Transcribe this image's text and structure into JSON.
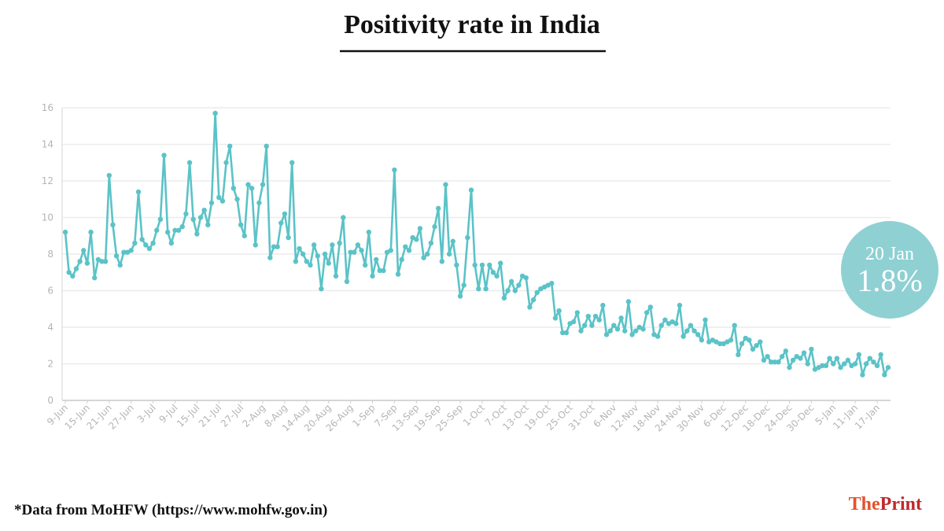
{
  "chart_data": {
    "type": "line",
    "title": "Positivity rate in India",
    "categories": [
      "9-Jun",
      null,
      null,
      null,
      null,
      null,
      "15-Jun",
      null,
      null,
      null,
      null,
      null,
      "21-Jun",
      null,
      null,
      null,
      null,
      null,
      "27-Jun",
      null,
      null,
      null,
      null,
      null,
      "3-Jul",
      null,
      null,
      null,
      null,
      null,
      "9-Jul",
      null,
      null,
      null,
      null,
      null,
      "15-Jul",
      null,
      null,
      null,
      null,
      null,
      "21-Jul",
      null,
      null,
      null,
      null,
      null,
      "27-Jul",
      null,
      null,
      null,
      null,
      null,
      "2-Aug",
      null,
      null,
      null,
      null,
      null,
      "8-Aug",
      null,
      null,
      null,
      null,
      null,
      "14-Aug",
      null,
      null,
      null,
      null,
      null,
      "20-Aug",
      null,
      null,
      null,
      null,
      null,
      "26-Aug",
      null,
      null,
      null,
      null,
      null,
      "1-Sep",
      null,
      null,
      null,
      null,
      null,
      "7-Sep",
      null,
      null,
      null,
      null,
      null,
      "13-Sep",
      null,
      null,
      null,
      null,
      null,
      "19-Sep",
      null,
      null,
      null,
      null,
      null,
      "25-Sep",
      null,
      null,
      null,
      null,
      null,
      "1-Oct",
      null,
      null,
      null,
      null,
      null,
      "7-Oct",
      null,
      null,
      null,
      null,
      null,
      "13-Oct",
      null,
      null,
      null,
      null,
      null,
      "19-Oct",
      null,
      null,
      null,
      null,
      null,
      "25-Oct",
      null,
      null,
      null,
      null,
      null,
      "31-Oct",
      null,
      null,
      null,
      null,
      null,
      "6-Nov",
      null,
      null,
      null,
      null,
      null,
      "12-Nov",
      null,
      null,
      null,
      null,
      null,
      "18-Nov",
      null,
      null,
      null,
      null,
      null,
      "24-Nov",
      null,
      null,
      null,
      null,
      null,
      "30-Nov",
      null,
      null,
      null,
      null,
      null,
      "6-Dec",
      null,
      null,
      null,
      null,
      null,
      "12-Dec",
      null,
      null,
      null,
      null,
      null,
      "18-Dec",
      null,
      null,
      null,
      null,
      null,
      "24-Dec",
      null,
      null,
      null,
      null,
      null,
      "30-Dec",
      null,
      null,
      null,
      null,
      null,
      "5-Jan",
      null,
      null,
      null,
      null,
      null,
      "11-Jan",
      null,
      null,
      null,
      null,
      null,
      "17-Jan",
      null,
      null,
      null
    ],
    "values": [
      9.2,
      7.0,
      6.8,
      7.2,
      7.6,
      8.2,
      7.5,
      9.2,
      6.7,
      7.7,
      7.6,
      7.6,
      12.3,
      9.6,
      7.9,
      7.4,
      8.1,
      8.1,
      8.2,
      8.6,
      11.4,
      8.8,
      8.5,
      8.3,
      8.6,
      9.3,
      9.9,
      13.4,
      9.2,
      8.6,
      9.3,
      9.3,
      9.5,
      10.2,
      13.0,
      9.9,
      9.1,
      10.0,
      10.4,
      9.6,
      10.8,
      15.7,
      11.1,
      10.9,
      13.0,
      13.9,
      11.6,
      11.0,
      9.6,
      9.0,
      11.8,
      11.6,
      8.5,
      10.8,
      11.8,
      13.9,
      7.8,
      8.4,
      8.4,
      9.7,
      10.2,
      8.9,
      13.0,
      7.6,
      8.3,
      8.0,
      7.6,
      7.4,
      8.5,
      7.9,
      6.1,
      8.0,
      7.5,
      8.5,
      6.8,
      8.6,
      10.0,
      6.5,
      8.1,
      8.1,
      8.5,
      8.2,
      7.4,
      9.2,
      6.8,
      7.7,
      7.1,
      7.1,
      8.1,
      8.2,
      12.6,
      6.9,
      7.7,
      8.4,
      8.2,
      8.9,
      8.8,
      9.4,
      7.8,
      8.0,
      8.6,
      9.5,
      10.5,
      7.6,
      11.8,
      8.0,
      8.7,
      7.4,
      5.7,
      6.3,
      8.9,
      11.5,
      7.4,
      6.1,
      7.4,
      6.1,
      7.4,
      7.0,
      6.8,
      7.5,
      5.6,
      6.0,
      6.5,
      6.0,
      6.3,
      6.8,
      6.7,
      5.1,
      5.5,
      5.9,
      6.1,
      6.2,
      6.3,
      6.4,
      4.5,
      4.9,
      3.7,
      3.7,
      4.2,
      4.3,
      4.8,
      3.8,
      4.1,
      4.6,
      4.1,
      4.6,
      4.4,
      5.2,
      3.6,
      3.8,
      4.1,
      3.9,
      4.5,
      3.8,
      5.4,
      3.6,
      3.8,
      4.0,
      3.9,
      4.8,
      5.1,
      3.6,
      3.5,
      4.1,
      4.4,
      4.2,
      4.3,
      4.2,
      5.2,
      3.5,
      3.8,
      4.1,
      3.8,
      3.6,
      3.3,
      4.4,
      3.2,
      3.3,
      3.2,
      3.1,
      3.1,
      3.2,
      3.3,
      4.1,
      2.5,
      3.1,
      3.4,
      3.3,
      2.8,
      3.0,
      3.2,
      2.2,
      2.4,
      2.1,
      2.1,
      2.1,
      2.4,
      2.7,
      1.8,
      2.2,
      2.4,
      2.3,
      2.6,
      2.0,
      2.8,
      1.7,
      1.8,
      1.9,
      1.9,
      2.3,
      2.0,
      2.3,
      1.8,
      2.0,
      2.2,
      1.9,
      2.0,
      2.5,
      1.4,
      2.0,
      2.3,
      2.1,
      1.9,
      2.5,
      1.4,
      1.8
    ],
    "color": "#5bc3c7",
    "ylim": [
      0,
      16
    ],
    "yticks": [
      0,
      2,
      4,
      6,
      8,
      10,
      12,
      14,
      16
    ],
    "grid": true,
    "annotation": {
      "date": "20 Jan",
      "text": "1.8%",
      "color": "#8fd0d3"
    },
    "source": "*Data from MoHFW (https://www.mohfw.gov.in)",
    "brand": {
      "prefix": "The",
      "name": "Print"
    }
  }
}
